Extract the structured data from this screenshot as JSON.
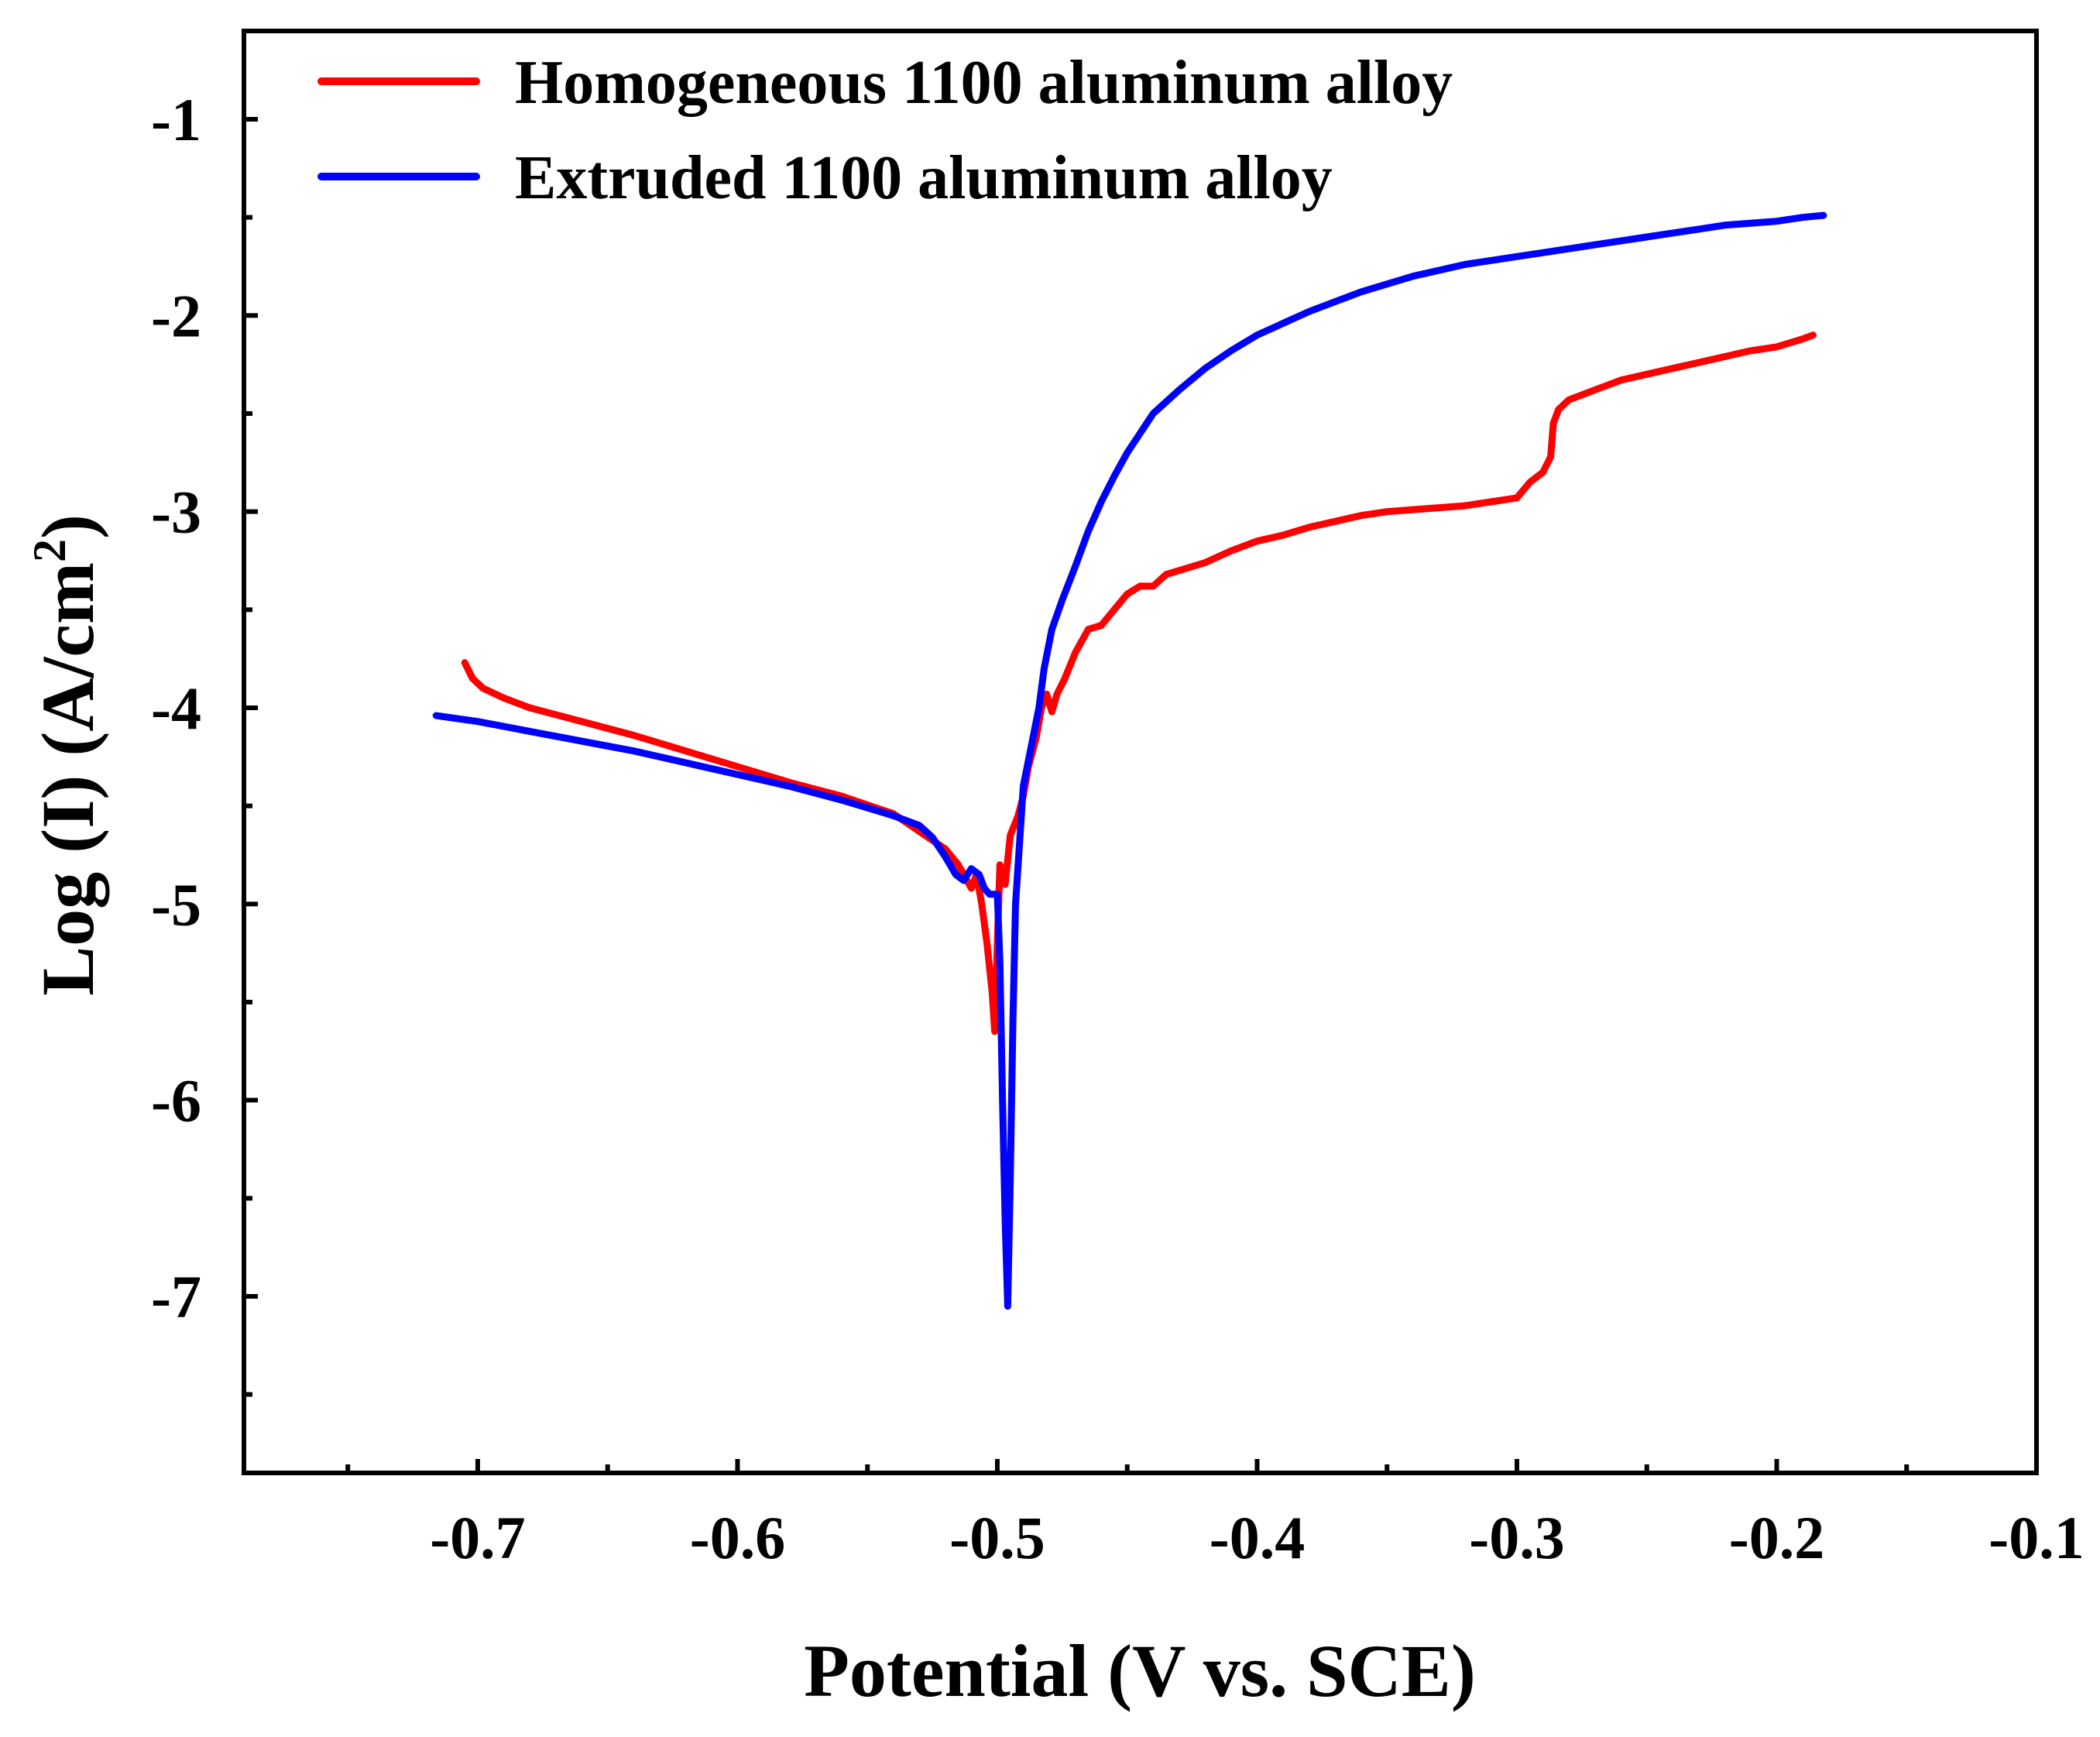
{
  "chart_data": {
    "type": "line",
    "title": "",
    "xlabel": "Potential  (V vs. SCE)",
    "ylabel_main": "Log (I) (A/cm",
    "ylabel_sup": "2",
    "ylabel_close": ")",
    "xlim": [
      -0.79,
      -0.1
    ],
    "ylim": [
      -7.9,
      -0.55
    ],
    "xticks": [
      -0.7,
      -0.6,
      -0.5,
      -0.4,
      -0.3,
      -0.2,
      -0.1
    ],
    "xtick_labels": [
      "-0.7",
      "-0.6",
      "-0.5",
      "-0.4",
      "-0.3",
      "-0.2",
      "-0.1"
    ],
    "yticks": [
      -7,
      -6,
      -5,
      -4,
      -3,
      -2,
      -1
    ],
    "ytick_labels": [
      "-7",
      "-6",
      "-5",
      "-4",
      "-3",
      "-2",
      "-1"
    ],
    "legend_position": "top-left",
    "series": [
      {
        "name": "Homogeneous 1100 aluminum alloy",
        "color": "#ff0000",
        "points": [
          [
            -0.705,
            -3.77
          ],
          [
            -0.702,
            -3.85
          ],
          [
            -0.698,
            -3.9
          ],
          [
            -0.69,
            -3.95
          ],
          [
            -0.68,
            -4.0
          ],
          [
            -0.66,
            -4.07
          ],
          [
            -0.64,
            -4.14
          ],
          [
            -0.62,
            -4.22
          ],
          [
            -0.6,
            -4.3
          ],
          [
            -0.58,
            -4.38
          ],
          [
            -0.56,
            -4.45
          ],
          [
            -0.54,
            -4.54
          ],
          [
            -0.53,
            -4.63
          ],
          [
            -0.52,
            -4.72
          ],
          [
            -0.515,
            -4.8
          ],
          [
            -0.51,
            -4.92
          ],
          [
            -0.508,
            -4.85
          ],
          [
            -0.506,
            -5.0
          ],
          [
            -0.504,
            -5.2
          ],
          [
            -0.502,
            -5.45
          ],
          [
            -0.501,
            -5.65
          ],
          [
            -0.5,
            -5.2
          ],
          [
            -0.499,
            -4.8
          ],
          [
            -0.497,
            -4.9
          ],
          [
            -0.495,
            -4.65
          ],
          [
            -0.492,
            -4.55
          ],
          [
            -0.49,
            -4.45
          ],
          [
            -0.488,
            -4.3
          ],
          [
            -0.485,
            -4.15
          ],
          [
            -0.483,
            -4.0
          ],
          [
            -0.481,
            -3.93
          ],
          [
            -0.479,
            -4.02
          ],
          [
            -0.477,
            -3.93
          ],
          [
            -0.474,
            -3.85
          ],
          [
            -0.47,
            -3.72
          ],
          [
            -0.465,
            -3.6
          ],
          [
            -0.46,
            -3.58
          ],
          [
            -0.455,
            -3.5
          ],
          [
            -0.45,
            -3.42
          ],
          [
            -0.445,
            -3.38
          ],
          [
            -0.44,
            -3.38
          ],
          [
            -0.435,
            -3.32
          ],
          [
            -0.43,
            -3.3
          ],
          [
            -0.42,
            -3.26
          ],
          [
            -0.41,
            -3.2
          ],
          [
            -0.4,
            -3.15
          ],
          [
            -0.39,
            -3.12
          ],
          [
            -0.38,
            -3.08
          ],
          [
            -0.37,
            -3.05
          ],
          [
            -0.36,
            -3.02
          ],
          [
            -0.35,
            -3.0
          ],
          [
            -0.34,
            -2.99
          ],
          [
            -0.33,
            -2.98
          ],
          [
            -0.32,
            -2.97
          ],
          [
            -0.31,
            -2.95
          ],
          [
            -0.3,
            -2.93
          ],
          [
            -0.295,
            -2.85
          ],
          [
            -0.29,
            -2.8
          ],
          [
            -0.287,
            -2.72
          ],
          [
            -0.286,
            -2.55
          ],
          [
            -0.284,
            -2.48
          ],
          [
            -0.28,
            -2.43
          ],
          [
            -0.27,
            -2.38
          ],
          [
            -0.26,
            -2.33
          ],
          [
            -0.25,
            -2.3
          ],
          [
            -0.24,
            -2.27
          ],
          [
            -0.23,
            -2.24
          ],
          [
            -0.22,
            -2.21
          ],
          [
            -0.21,
            -2.18
          ],
          [
            -0.2,
            -2.16
          ],
          [
            -0.19,
            -2.12
          ],
          [
            -0.186,
            -2.1
          ]
        ]
      },
      {
        "name": "Extruded 1100 aluminum alloy",
        "color": "#0000ff",
        "points": [
          [
            -0.716,
            -4.04
          ],
          [
            -0.7,
            -4.07
          ],
          [
            -0.68,
            -4.12
          ],
          [
            -0.66,
            -4.17
          ],
          [
            -0.64,
            -4.22
          ],
          [
            -0.62,
            -4.28
          ],
          [
            -0.6,
            -4.34
          ],
          [
            -0.58,
            -4.4
          ],
          [
            -0.56,
            -4.47
          ],
          [
            -0.54,
            -4.55
          ],
          [
            -0.53,
            -4.6
          ],
          [
            -0.525,
            -4.66
          ],
          [
            -0.52,
            -4.76
          ],
          [
            -0.516,
            -4.85
          ],
          [
            -0.513,
            -4.88
          ],
          [
            -0.51,
            -4.82
          ],
          [
            -0.507,
            -4.85
          ],
          [
            -0.505,
            -4.92
          ],
          [
            -0.503,
            -4.95
          ],
          [
            -0.5,
            -4.95
          ],
          [
            -0.499,
            -5.3
          ],
          [
            -0.498,
            -6.0
          ],
          [
            -0.497,
            -6.6
          ],
          [
            -0.496,
            -7.05
          ],
          [
            -0.495,
            -6.4
          ],
          [
            -0.494,
            -5.6
          ],
          [
            -0.493,
            -5.0
          ],
          [
            -0.49,
            -4.4
          ],
          [
            -0.487,
            -4.2
          ],
          [
            -0.484,
            -4.0
          ],
          [
            -0.482,
            -3.8
          ],
          [
            -0.479,
            -3.6
          ],
          [
            -0.475,
            -3.45
          ],
          [
            -0.47,
            -3.28
          ],
          [
            -0.465,
            -3.1
          ],
          [
            -0.46,
            -2.95
          ],
          [
            -0.455,
            -2.82
          ],
          [
            -0.45,
            -2.7
          ],
          [
            -0.445,
            -2.6
          ],
          [
            -0.44,
            -2.5
          ],
          [
            -0.43,
            -2.38
          ],
          [
            -0.42,
            -2.27
          ],
          [
            -0.41,
            -2.18
          ],
          [
            -0.4,
            -2.1
          ],
          [
            -0.39,
            -2.04
          ],
          [
            -0.38,
            -1.98
          ],
          [
            -0.37,
            -1.93
          ],
          [
            -0.36,
            -1.88
          ],
          [
            -0.35,
            -1.84
          ],
          [
            -0.34,
            -1.8
          ],
          [
            -0.33,
            -1.77
          ],
          [
            -0.32,
            -1.74
          ],
          [
            -0.31,
            -1.72
          ],
          [
            -0.3,
            -1.7
          ],
          [
            -0.29,
            -1.68
          ],
          [
            -0.28,
            -1.66
          ],
          [
            -0.27,
            -1.64
          ],
          [
            -0.26,
            -1.62
          ],
          [
            -0.25,
            -1.6
          ],
          [
            -0.24,
            -1.58
          ],
          [
            -0.23,
            -1.56
          ],
          [
            -0.22,
            -1.54
          ],
          [
            -0.21,
            -1.53
          ],
          [
            -0.2,
            -1.52
          ],
          [
            -0.19,
            -1.5
          ],
          [
            -0.182,
            -1.49
          ]
        ]
      }
    ]
  }
}
